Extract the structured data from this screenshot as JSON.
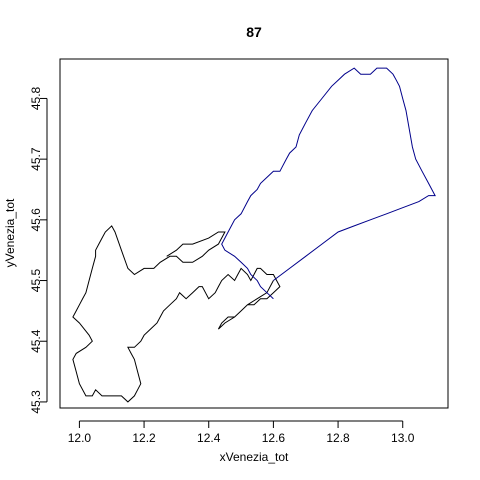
{
  "chart_data": {
    "type": "line",
    "title": "87",
    "xlabel": "xVenezia_tot",
    "ylabel": "yVenezia_tot",
    "xlim": [
      11.94,
      13.14
    ],
    "ylim": [
      45.29,
      45.865
    ],
    "xticks": [
      "12.0",
      "12.2",
      "12.4",
      "12.6",
      "12.8",
      "13.0"
    ],
    "yticks": [
      "45.3",
      "45.4",
      "45.5",
      "45.6",
      "45.7",
      "45.8"
    ],
    "grid": false,
    "colors": {
      "series1": "#000000",
      "series2": "#00008b"
    },
    "series": [
      {
        "x": [
          12.27,
          12.3,
          12.32,
          12.35,
          12.4,
          12.43,
          12.45,
          12.43,
          12.4,
          12.38,
          12.35,
          12.32,
          12.3,
          12.28,
          12.25,
          12.23,
          12.2,
          12.17,
          12.15,
          12.13,
          12.11,
          12.1,
          12.08,
          12.07,
          12.06,
          12.05,
          12.05,
          12.04,
          12.03,
          12.02,
          12.01,
          12.0,
          11.99,
          11.98,
          12.0,
          12.03,
          12.04,
          12.02,
          11.99,
          11.98,
          11.99,
          12.0,
          12.02,
          12.04,
          12.05,
          12.07,
          12.09,
          12.11,
          12.13,
          12.15,
          12.17,
          12.18,
          12.19,
          12.18,
          12.17,
          12.16,
          12.15,
          12.17,
          12.19,
          12.2,
          12.22,
          12.24,
          12.25,
          12.26,
          12.28,
          12.3,
          12.31,
          12.33,
          12.35,
          12.37,
          12.38,
          12.39,
          12.4,
          12.42,
          12.43,
          12.44,
          12.46,
          12.48,
          12.49,
          12.5,
          12.52,
          12.53,
          12.54,
          12.55,
          12.56,
          12.58,
          12.6,
          12.61,
          12.62,
          12.6,
          12.58,
          12.56,
          12.54,
          12.52,
          12.5,
          12.48,
          12.46,
          12.44,
          12.43,
          12.45,
          12.48,
          12.5,
          12.52,
          12.55,
          12.58,
          12.6
        ],
        "y": [
          45.54,
          45.55,
          45.56,
          45.56,
          45.57,
          45.58,
          45.58,
          45.56,
          45.55,
          45.54,
          45.53,
          45.53,
          45.54,
          45.54,
          45.53,
          45.52,
          45.52,
          45.51,
          45.52,
          45.55,
          45.58,
          45.59,
          45.58,
          45.57,
          45.56,
          45.55,
          45.54,
          45.52,
          45.5,
          45.48,
          45.47,
          45.46,
          45.45,
          45.44,
          45.43,
          45.41,
          45.4,
          45.39,
          45.38,
          45.37,
          45.35,
          45.33,
          45.31,
          45.31,
          45.32,
          45.31,
          45.31,
          45.31,
          45.31,
          45.3,
          45.31,
          45.32,
          45.33,
          45.35,
          45.37,
          45.38,
          45.39,
          45.39,
          45.4,
          45.41,
          45.42,
          45.43,
          45.44,
          45.45,
          45.46,
          45.47,
          45.48,
          45.47,
          45.48,
          45.49,
          45.49,
          45.48,
          45.47,
          45.48,
          45.49,
          45.5,
          45.51,
          45.5,
          45.51,
          45.52,
          45.51,
          45.5,
          45.51,
          45.52,
          45.52,
          45.51,
          45.51,
          45.5,
          45.49,
          45.48,
          45.47,
          45.47,
          45.46,
          45.46,
          45.45,
          45.44,
          45.44,
          45.43,
          45.42,
          45.43,
          45.44,
          45.45,
          45.46,
          45.47,
          45.48,
          45.5
        ]
      },
      {
        "x": [
          12.6,
          12.65,
          12.7,
          12.75,
          12.8,
          12.85,
          12.9,
          12.95,
          13.0,
          13.05,
          13.08,
          13.1,
          13.08,
          13.06,
          13.04,
          13.03,
          13.02,
          13.01,
          13.0,
          12.99,
          12.98,
          12.97,
          12.95,
          12.92,
          12.9,
          12.87,
          12.85,
          12.82,
          12.8,
          12.78,
          12.75,
          12.72,
          12.7,
          12.68,
          12.67,
          12.65,
          12.64,
          12.63,
          12.62,
          12.6,
          12.58,
          12.56,
          12.55,
          12.53,
          12.52,
          12.5,
          12.48,
          12.46,
          12.44,
          12.45,
          12.48,
          12.5,
          12.52,
          12.53,
          12.55,
          12.56,
          12.58,
          12.6
        ],
        "y": [
          45.5,
          45.52,
          45.54,
          45.56,
          45.58,
          45.59,
          45.6,
          45.61,
          45.62,
          45.63,
          45.64,
          45.64,
          45.66,
          45.68,
          45.7,
          45.72,
          45.75,
          45.78,
          45.8,
          45.82,
          45.83,
          45.84,
          45.85,
          45.85,
          45.84,
          45.84,
          45.85,
          45.84,
          45.83,
          45.82,
          45.8,
          45.78,
          45.76,
          45.74,
          45.72,
          45.71,
          45.7,
          45.69,
          45.68,
          45.68,
          45.67,
          45.66,
          45.65,
          45.64,
          45.63,
          45.61,
          45.6,
          45.58,
          45.56,
          45.55,
          45.54,
          45.53,
          45.52,
          45.51,
          45.5,
          45.49,
          45.48,
          45.47
        ]
      }
    ]
  }
}
